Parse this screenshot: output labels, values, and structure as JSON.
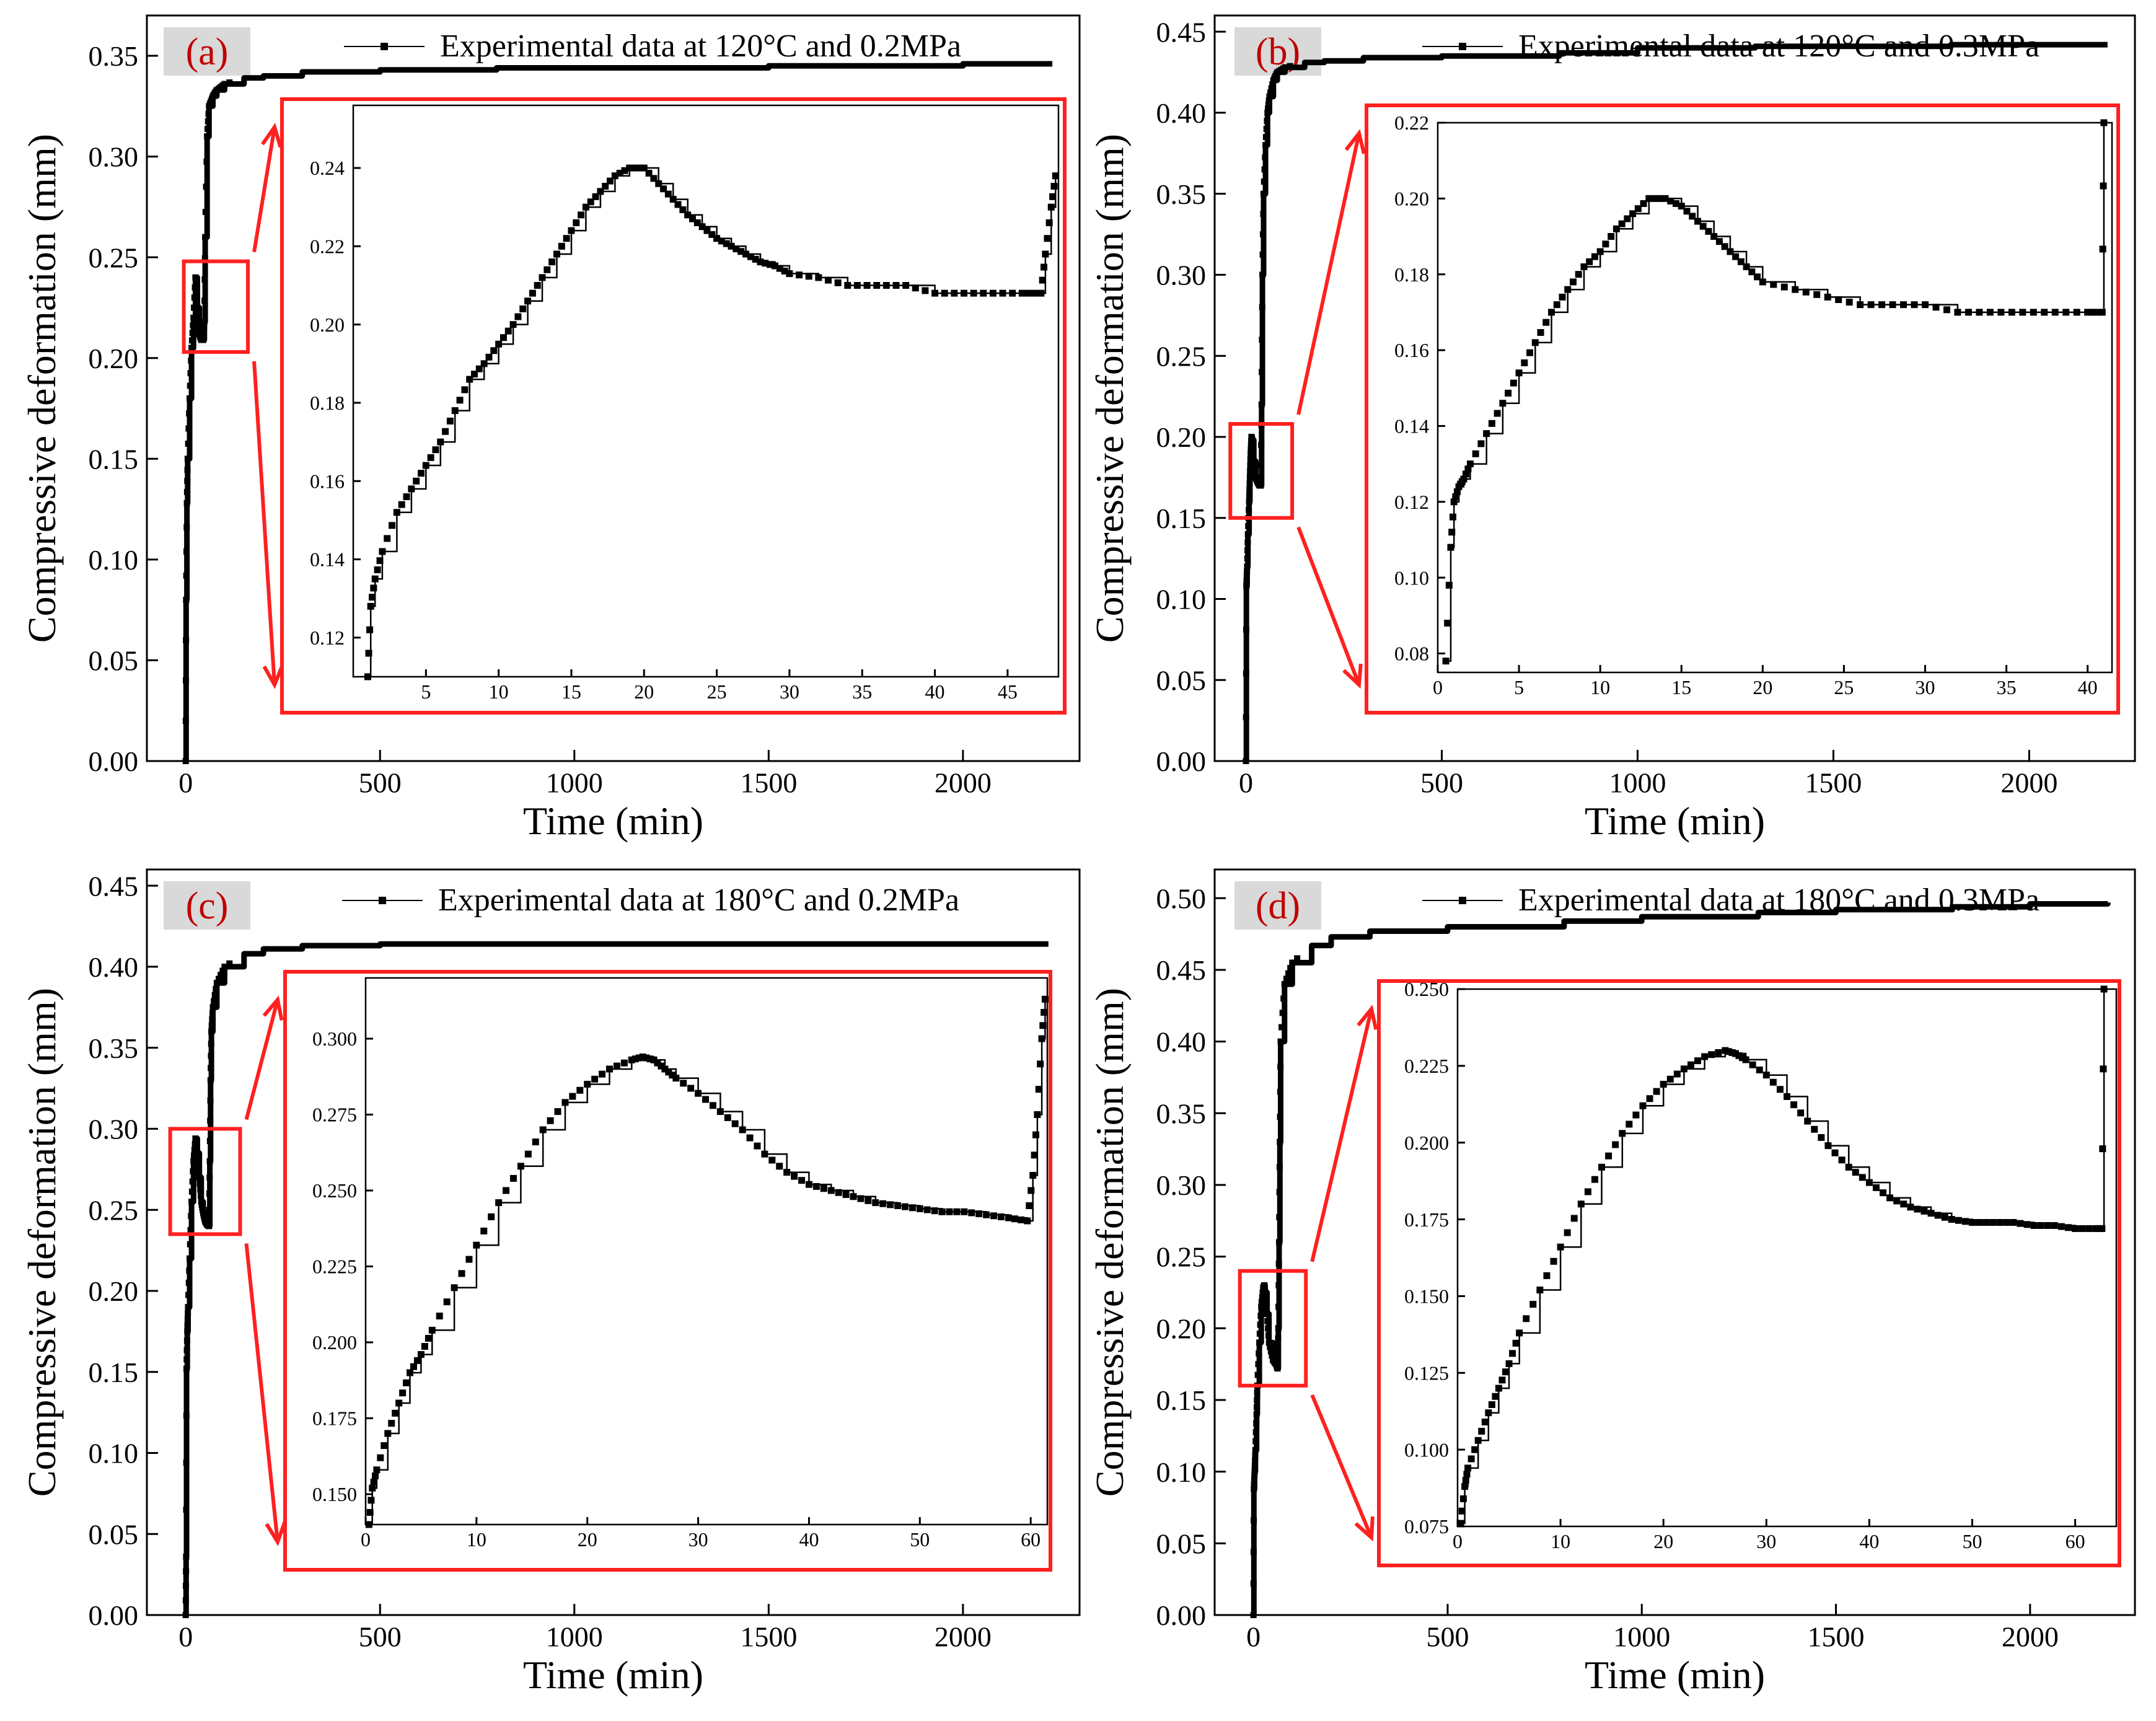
{
  "figure": {
    "y_axis_label": "Compressive deformation (mm)",
    "x_axis_label": "Time (min)",
    "colors": {
      "data": "#000000",
      "highlight": "#ff2020",
      "panel_tag_bg": "#d9d9d9",
      "inset_curve": "#000000"
    }
  },
  "chart_data": [
    {
      "type": "line",
      "panel_label": "(a)",
      "legend": "Experimental data at 120°C and 0.2MPa",
      "xlabel": "Time (min)",
      "ylabel": "Compressive deformation (mm)",
      "xlim": [
        -100,
        2300
      ],
      "ylim": [
        0,
        0.37
      ],
      "xticks": [
        "0",
        "500",
        "1000",
        "1500",
        "2000"
      ],
      "yticks": [
        "0.00",
        "0.05",
        "0.10",
        "0.15",
        "0.20",
        "0.25",
        "0.30",
        "0.35"
      ],
      "zoom_box": {
        "x": [
          -5,
          160
        ],
        "y": [
          0.203,
          0.248
        ]
      },
      "main_series": {
        "x": [
          0,
          1,
          3,
          5,
          10,
          15,
          20,
          25,
          30,
          35,
          40,
          45,
          48,
          50,
          55,
          60,
          70,
          80,
          100,
          150,
          200,
          300,
          500,
          800,
          1000,
          1300,
          1500,
          1800,
          2000,
          2230
        ],
        "y": [
          0,
          0.08,
          0.128,
          0.15,
          0.18,
          0.205,
          0.22,
          0.24,
          0.225,
          0.212,
          0.209,
          0.209,
          0.218,
          0.26,
          0.31,
          0.325,
          0.33,
          0.333,
          0.336,
          0.339,
          0.34,
          0.342,
          0.343,
          0.344,
          0.344,
          0.344,
          0.345,
          0.345,
          0.346,
          0.346
        ]
      },
      "inset": {
        "xlim": [
          0,
          48.5
        ],
        "ylim": [
          0.11,
          0.256
        ],
        "xticks": [
          "5",
          "10",
          "15",
          "20",
          "25",
          "30",
          "35",
          "40",
          "45"
        ],
        "yticks": [
          "0.12",
          "0.14",
          "0.16",
          "0.18",
          "0.20",
          "0.22",
          "0.24"
        ],
        "x": [
          1,
          1.2,
          1.5,
          2,
          3,
          4,
          5,
          6,
          7,
          8,
          9,
          10,
          11,
          12,
          13,
          14,
          15,
          16,
          17,
          18,
          19,
          20,
          21,
          22,
          23,
          24,
          25,
          26,
          27,
          28,
          29,
          30,
          32,
          34,
          36,
          38,
          40,
          42,
          44,
          46,
          47.3,
          47.6,
          48,
          48.3
        ],
        "y": [
          0.11,
          0.128,
          0.135,
          0.142,
          0.152,
          0.158,
          0.164,
          0.17,
          0.178,
          0.186,
          0.19,
          0.195,
          0.2,
          0.206,
          0.212,
          0.218,
          0.224,
          0.23,
          0.234,
          0.238,
          0.24,
          0.24,
          0.236,
          0.232,
          0.228,
          0.225,
          0.222,
          0.22,
          0.218,
          0.216,
          0.215,
          0.213,
          0.212,
          0.21,
          0.21,
          0.21,
          0.208,
          0.208,
          0.208,
          0.208,
          0.208,
          0.218,
          0.23,
          0.238
        ]
      }
    },
    {
      "type": "line",
      "panel_label": "(b)",
      "legend": "Experimental data at 120°C and 0.3MPa",
      "xlabel": "Time (min)",
      "ylabel": "Compressive deformation (mm)",
      "xlim": [
        -80,
        2270
      ],
      "ylim": [
        0,
        0.46
      ],
      "xticks": [
        "0",
        "500",
        "1000",
        "1500",
        "2000"
      ],
      "yticks": [
        "0.00",
        "0.05",
        "0.10",
        "0.15",
        "0.20",
        "0.25",
        "0.30",
        "0.35",
        "0.40",
        "0.45"
      ],
      "zoom_box": {
        "x": [
          -40,
          118
        ],
        "y": [
          0.15,
          0.208
        ]
      },
      "main_series": {
        "x": [
          0,
          1,
          3,
          5,
          8,
          10,
          12,
          14,
          16,
          20,
          25,
          30,
          35,
          38,
          40,
          42,
          45,
          50,
          55,
          60,
          70,
          80,
          100,
          150,
          200,
          300,
          500,
          800,
          1000,
          1300,
          1500,
          1800,
          2000,
          2200
        ],
        "y": [
          0,
          0.108,
          0.12,
          0.14,
          0.16,
          0.175,
          0.19,
          0.2,
          0.198,
          0.185,
          0.175,
          0.172,
          0.17,
          0.17,
          0.22,
          0.3,
          0.35,
          0.38,
          0.4,
          0.41,
          0.42,
          0.425,
          0.428,
          0.431,
          0.432,
          0.434,
          0.435,
          0.437,
          0.44,
          0.441,
          0.441,
          0.442,
          0.442,
          0.442
        ]
      },
      "inset": {
        "xlim": [
          0,
          41.5
        ],
        "ylim": [
          0.075,
          0.22
        ],
        "xticks": [
          "0",
          "5",
          "10",
          "15",
          "20",
          "25",
          "30",
          "35",
          "40"
        ],
        "yticks": [
          "0.08",
          "0.10",
          "0.12",
          "0.14",
          "0.16",
          "0.18",
          "0.20",
          "0.22"
        ],
        "x": [
          0.5,
          0.8,
          1.0,
          1.3,
          1.6,
          2,
          3,
          4,
          5,
          6,
          7,
          8,
          9,
          10,
          11,
          12,
          13,
          14,
          15,
          16,
          17,
          18,
          19,
          20,
          22,
          24,
          26,
          28,
          30,
          32,
          34,
          36,
          38,
          40,
          40.9,
          41
        ],
        "y": [
          0.078,
          0.108,
          0.12,
          0.124,
          0.126,
          0.13,
          0.138,
          0.146,
          0.154,
          0.162,
          0.17,
          0.176,
          0.182,
          0.186,
          0.192,
          0.196,
          0.2,
          0.2,
          0.198,
          0.194,
          0.19,
          0.186,
          0.182,
          0.178,
          0.176,
          0.174,
          0.172,
          0.172,
          0.172,
          0.17,
          0.17,
          0.17,
          0.17,
          0.17,
          0.17,
          0.22
        ]
      }
    },
    {
      "type": "line",
      "panel_label": "(c)",
      "legend": "Experimental data at 180°C and 0.2MPa",
      "xlabel": "Time (min)",
      "ylabel": "Compressive deformation (mm)",
      "xlim": [
        -100,
        2300
      ],
      "ylim": [
        0,
        0.46
      ],
      "xticks": [
        "0",
        "500",
        "1000",
        "1500",
        "2000"
      ],
      "yticks": [
        "0.00",
        "0.05",
        "0.10",
        "0.15",
        "0.20",
        "0.25",
        "0.30",
        "0.35",
        "0.40",
        "0.45"
      ],
      "zoom_box": {
        "x": [
          -40,
          140
        ],
        "y": [
          0.235,
          0.3
        ]
      },
      "main_series": {
        "x": [
          0,
          1,
          2,
          4,
          6,
          10,
          15,
          20,
          25,
          30,
          35,
          40,
          45,
          50,
          55,
          60,
          62,
          64,
          66,
          70,
          80,
          100,
          150,
          200,
          300,
          500,
          800,
          1000,
          1300,
          1500,
          1800,
          2000,
          2220
        ],
        "y": [
          0,
          0.036,
          0.152,
          0.175,
          0.19,
          0.22,
          0.255,
          0.28,
          0.294,
          0.285,
          0.27,
          0.255,
          0.248,
          0.243,
          0.241,
          0.24,
          0.28,
          0.33,
          0.36,
          0.375,
          0.39,
          0.4,
          0.408,
          0.411,
          0.413,
          0.414,
          0.414,
          0.414,
          0.414,
          0.414,
          0.414,
          0.414,
          0.414
        ]
      },
      "inset": {
        "xlim": [
          0,
          61.5
        ],
        "ylim": [
          0.14,
          0.32
        ],
        "xticks": [
          "0",
          "10",
          "20",
          "30",
          "40",
          "50",
          "60"
        ],
        "yticks": [
          "0.150",
          "0.175",
          "0.200",
          "0.225",
          "0.250",
          "0.275",
          "0.300"
        ],
        "x": [
          0.3,
          0.6,
          1,
          2,
          3,
          4,
          5,
          6,
          8,
          10,
          12,
          14,
          16,
          18,
          20,
          22,
          24,
          25,
          26,
          27,
          28,
          30,
          32,
          34,
          36,
          38,
          40,
          42,
          44,
          46,
          48,
          50,
          52,
          54,
          56,
          58,
          59.7,
          60.2,
          60.6,
          61,
          61.3
        ],
        "y": [
          0.14,
          0.152,
          0.158,
          0.17,
          0.18,
          0.19,
          0.196,
          0.204,
          0.218,
          0.232,
          0.246,
          0.258,
          0.27,
          0.279,
          0.285,
          0.29,
          0.293,
          0.294,
          0.293,
          0.29,
          0.287,
          0.282,
          0.276,
          0.27,
          0.262,
          0.256,
          0.252,
          0.25,
          0.248,
          0.246,
          0.245,
          0.244,
          0.243,
          0.243,
          0.242,
          0.241,
          0.24,
          0.255,
          0.275,
          0.3,
          0.313
        ]
      }
    },
    {
      "type": "line",
      "panel_label": "(d)",
      "legend": "Experimental data at 180°C and 0.3MPa",
      "xlabel": "Time (min)",
      "ylabel": "Compressive deformation (mm)",
      "xlim": [
        -100,
        2270
      ],
      "ylim": [
        0,
        0.52
      ],
      "xticks": [
        "0",
        "500",
        "1000",
        "1500",
        "2000"
      ],
      "yticks": [
        "0.00",
        "0.05",
        "0.10",
        "0.15",
        "0.20",
        "0.25",
        "0.30",
        "0.35",
        "0.40",
        "0.45",
        "0.50"
      ],
      "zoom_box": {
        "x": [
          -35,
          135
        ],
        "y": [
          0.16,
          0.24
        ]
      },
      "main_series": {
        "x": [
          0,
          1,
          3,
          5,
          8,
          10,
          15,
          20,
          25,
          28,
          30,
          35,
          40,
          50,
          60,
          62,
          64,
          66,
          68,
          70,
          80,
          100,
          150,
          200,
          300,
          500,
          800,
          1000,
          1300,
          1500,
          1800,
          2000,
          2200
        ],
        "y": [
          0,
          0.088,
          0.1,
          0.115,
          0.14,
          0.16,
          0.19,
          0.215,
          0.228,
          0.23,
          0.225,
          0.21,
          0.19,
          0.178,
          0.174,
          0.172,
          0.2,
          0.26,
          0.33,
          0.4,
          0.44,
          0.455,
          0.467,
          0.473,
          0.477,
          0.48,
          0.484,
          0.487,
          0.49,
          0.492,
          0.494,
          0.496,
          0.497
        ]
      },
      "inset": {
        "xlim": [
          0,
          64
        ],
        "ylim": [
          0.075,
          0.25
        ],
        "xticks": [
          "0",
          "10",
          "20",
          "30",
          "40",
          "50",
          "60"
        ],
        "yticks": [
          "0.075",
          "0.100",
          "0.125",
          "0.150",
          "0.175",
          "0.200",
          "0.225",
          "0.250"
        ],
        "x": [
          0.3,
          0.7,
          1,
          2,
          3,
          4,
          5,
          6,
          8,
          10,
          12,
          14,
          16,
          18,
          20,
          22,
          24,
          26,
          27,
          28,
          30,
          32,
          34,
          36,
          38,
          40,
          42,
          44,
          46,
          48,
          50,
          52,
          54,
          56,
          58,
          60,
          62,
          62.6,
          62.8
        ],
        "y": [
          0.076,
          0.088,
          0.094,
          0.103,
          0.112,
          0.12,
          0.128,
          0.138,
          0.152,
          0.166,
          0.18,
          0.192,
          0.203,
          0.212,
          0.219,
          0.224,
          0.228,
          0.23,
          0.229,
          0.227,
          0.222,
          0.215,
          0.207,
          0.199,
          0.192,
          0.187,
          0.182,
          0.179,
          0.177,
          0.175,
          0.174,
          0.174,
          0.174,
          0.173,
          0.173,
          0.172,
          0.172,
          0.172,
          0.25
        ]
      }
    }
  ]
}
